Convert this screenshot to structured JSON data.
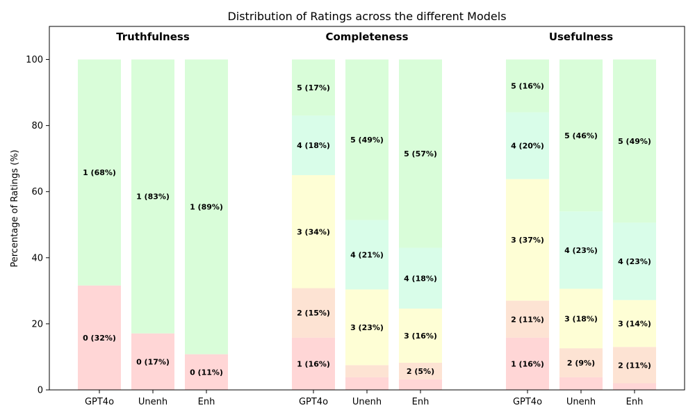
{
  "chart_data": {
    "type": "bar",
    "stacked": true,
    "title": "Distribution of Ratings across the different Models",
    "ylabel": "Percentage of Ratings (%)",
    "xlabel": "",
    "ylim": [
      0,
      110
    ],
    "yticks": [
      0,
      20,
      40,
      60,
      80,
      100
    ],
    "grid": false,
    "colors": {
      "0": "#ffd6d6",
      "1": "#ffd6d6",
      "2": "#fde3d3",
      "3": "#fefed5",
      "4": "#d9fde9",
      "5": "#d9fdd9",
      "truth1": "#d9fdd9",
      "truth0": "#ffd6d6"
    },
    "groups": [
      {
        "title": "Truthfulness",
        "bars": [
          {
            "model": "GPT4o",
            "segments": [
              {
                "rating": "0",
                "value": 31.6,
                "color_key": "truth0",
                "label": "0 (32%)"
              },
              {
                "rating": "1",
                "value": 68.4,
                "color_key": "truth1",
                "label": "1 (68%)"
              }
            ]
          },
          {
            "model": "Unenh",
            "segments": [
              {
                "rating": "0",
                "value": 17.1,
                "color_key": "truth0",
                "label": "0 (17%)"
              },
              {
                "rating": "1",
                "value": 82.9,
                "color_key": "truth1",
                "label": "1 (83%)"
              }
            ]
          },
          {
            "model": "Enh",
            "segments": [
              {
                "rating": "0",
                "value": 10.8,
                "color_key": "truth0",
                "label": "0 (11%)"
              },
              {
                "rating": "1",
                "value": 89.2,
                "color_key": "truth1",
                "label": "1 (89%)"
              }
            ]
          }
        ]
      },
      {
        "title": "Completeness",
        "bars": [
          {
            "model": "GPT4o",
            "segments": [
              {
                "rating": "1",
                "value": 15.8,
                "color_key": "1",
                "label": "1 (16%)"
              },
              {
                "rating": "2",
                "value": 15.0,
                "color_key": "2",
                "label": "2 (15%)"
              },
              {
                "rating": "3",
                "value": 34.2,
                "color_key": "3",
                "label": "3 (34%)"
              },
              {
                "rating": "4",
                "value": 18.0,
                "color_key": "4",
                "label": "4 (18%)"
              },
              {
                "rating": "5",
                "value": 17.0,
                "color_key": "5",
                "label": "5 (17%)"
              }
            ]
          },
          {
            "model": "Unenh",
            "segments": [
              {
                "rating": "1",
                "value": 3.8,
                "color_key": "1",
                "label": ""
              },
              {
                "rating": "2",
                "value": 3.7,
                "color_key": "2",
                "label": ""
              },
              {
                "rating": "3",
                "value": 22.9,
                "color_key": "3",
                "label": "3 (23%)"
              },
              {
                "rating": "4",
                "value": 21.0,
                "color_key": "4",
                "label": "4 (21%)"
              },
              {
                "rating": "5",
                "value": 48.6,
                "color_key": "5",
                "label": "5 (49%)"
              }
            ]
          },
          {
            "model": "Enh",
            "segments": [
              {
                "rating": "1",
                "value": 3.2,
                "color_key": "1",
                "label": ""
              },
              {
                "rating": "2",
                "value": 5.0,
                "color_key": "2",
                "label": "2 (5%)"
              },
              {
                "rating": "3",
                "value": 16.4,
                "color_key": "3",
                "label": "3 (16%)"
              },
              {
                "rating": "4",
                "value": 18.4,
                "color_key": "4",
                "label": "4 (18%)"
              },
              {
                "rating": "5",
                "value": 57.0,
                "color_key": "5",
                "label": "5 (57%)"
              }
            ]
          }
        ]
      },
      {
        "title": "Usefulness",
        "bars": [
          {
            "model": "GPT4o",
            "segments": [
              {
                "rating": "1",
                "value": 15.8,
                "color_key": "1",
                "label": "1 (16%)"
              },
              {
                "rating": "2",
                "value": 11.2,
                "color_key": "2",
                "label": "2 (11%)"
              },
              {
                "rating": "3",
                "value": 36.8,
                "color_key": "3",
                "label": "3 (37%)"
              },
              {
                "rating": "4",
                "value": 20.2,
                "color_key": "4",
                "label": "4 (20%)"
              },
              {
                "rating": "5",
                "value": 16.0,
                "color_key": "5",
                "label": "5 (16%)"
              }
            ]
          },
          {
            "model": "Unenh",
            "segments": [
              {
                "rating": "1",
                "value": 3.8,
                "color_key": "1",
                "label": ""
              },
              {
                "rating": "2",
                "value": 8.8,
                "color_key": "2",
                "label": "2 (9%)"
              },
              {
                "rating": "3",
                "value": 18.0,
                "color_key": "3",
                "label": "3 (18%)"
              },
              {
                "rating": "4",
                "value": 23.4,
                "color_key": "4",
                "label": "4 (23%)"
              },
              {
                "rating": "5",
                "value": 46.0,
                "color_key": "5",
                "label": "5 (46%)"
              }
            ]
          },
          {
            "model": "Enh",
            "segments": [
              {
                "rating": "1",
                "value": 2.0,
                "color_key": "1",
                "label": ""
              },
              {
                "rating": "2",
                "value": 11.0,
                "color_key": "2",
                "label": "2 (11%)"
              },
              {
                "rating": "3",
                "value": 14.2,
                "color_key": "3",
                "label": "3 (14%)"
              },
              {
                "rating": "4",
                "value": 23.4,
                "color_key": "4",
                "label": "4 (23%)"
              },
              {
                "rating": "5",
                "value": 49.4,
                "color_key": "5",
                "label": "5 (49%)"
              }
            ]
          }
        ]
      }
    ]
  }
}
